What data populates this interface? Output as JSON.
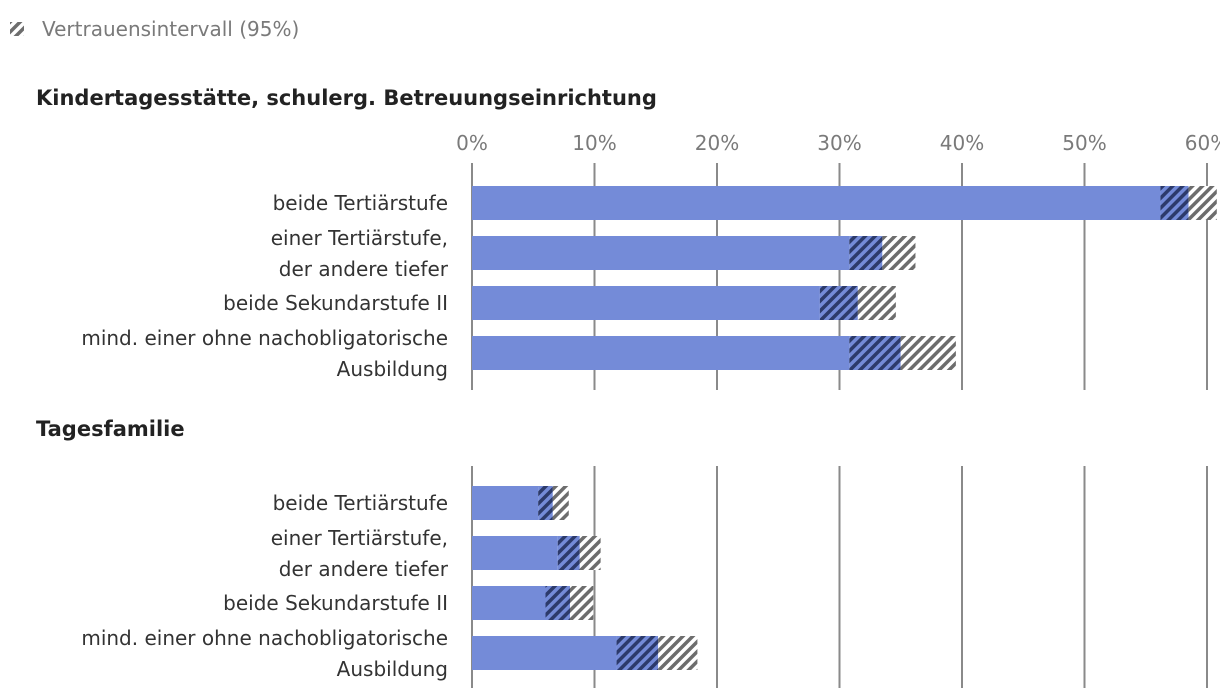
{
  "legend": {
    "label": "Vertrauensintervall (95%)",
    "icon": "hatched-square-icon"
  },
  "colors": {
    "bar": "#748bd8",
    "ci_dark": "#2c3a6b",
    "ci_gray": "#6d6d6d",
    "grid": "#8a8a8a"
  },
  "chart_data": [
    {
      "type": "bar",
      "orientation": "horizontal",
      "title": "Kindertagesstätte, schulerg. Betreuungseinrichtung",
      "xlim": [
        0,
        60
      ],
      "xticks": [
        "0%",
        "10%",
        "20%",
        "30%",
        "40%",
        "50%",
        "60%"
      ],
      "show_tick_labels": true,
      "categories": [
        [
          "beide Tertiärstufe"
        ],
        [
          "einer Tertiärstufe,",
          "der andere tiefer"
        ],
        [
          "beide Sekundarstufe II"
        ],
        [
          "mind. einer ohne nachobligatorische",
          "Ausbildung"
        ]
      ],
      "values": [
        58.5,
        33.5,
        31.5,
        35.0
      ],
      "ci_low": [
        56.2,
        30.8,
        28.4,
        30.8
      ],
      "ci_high": [
        60.8,
        36.2,
        34.6,
        39.5
      ]
    },
    {
      "type": "bar",
      "orientation": "horizontal",
      "title": "Tagesfamilie",
      "xlim": [
        0,
        60
      ],
      "xticks": [
        "0%",
        "10%",
        "20%",
        "30%",
        "40%",
        "50%",
        "60%"
      ],
      "show_tick_labels": false,
      "categories": [
        [
          "beide Tertiärstufe"
        ],
        [
          "einer Tertiärstufe,",
          "der andere tiefer"
        ],
        [
          "beide Sekundarstufe II"
        ],
        [
          "mind. einer ohne nachobligatorische",
          "Ausbildung"
        ]
      ],
      "values": [
        6.6,
        8.8,
        8.0,
        15.2
      ],
      "ci_low": [
        5.4,
        7.0,
        6.0,
        11.8
      ],
      "ci_high": [
        7.9,
        10.5,
        9.9,
        18.4
      ]
    }
  ]
}
